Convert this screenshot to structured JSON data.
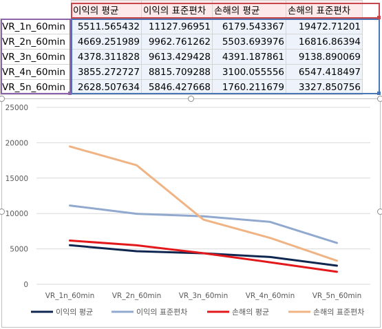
{
  "table": {
    "headers": [
      "이익의 평균",
      "이익의 표준편차",
      "손해의 평균",
      "손해의 표준편차"
    ],
    "rows": [
      {
        "label": "VR_1n_60min",
        "cells": [
          "5511.565432",
          "11127.96951",
          "6179.543367",
          "19472.71201"
        ]
      },
      {
        "label": "VR_2n_60min",
        "cells": [
          "4669.251989",
          "9962.761262",
          "5503.693976",
          "16816.86394"
        ]
      },
      {
        "label": "VR_3n_60min",
        "cells": [
          "4378.311828",
          "9613.429428",
          "4391.187861",
          "9138.890069"
        ]
      },
      {
        "label": "VR_4n_60min",
        "cells": [
          "3855.272727",
          "8815.709288",
          "3100.055556",
          "6547.418497"
        ]
      },
      {
        "label": "VR_5n_60min",
        "cells": [
          "2628.507634",
          "5846.427668",
          "1760.211679",
          "3327.850756"
        ]
      }
    ]
  },
  "chart_data": {
    "type": "line",
    "title": "",
    "xlabel": "",
    "ylabel": "",
    "ylim": [
      0,
      25000
    ],
    "y_ticks": [
      "0",
      "5000",
      "10000",
      "15000",
      "20000",
      "25000"
    ],
    "grid": true,
    "legend_position": "bottom",
    "categories": [
      "VR_1n_60min",
      "VR_2n_60min",
      "VR_3n_60min",
      "VR_4n_60min",
      "VR_5n_60min"
    ],
    "series": [
      {
        "name": "이익의 평균",
        "color": "#0f2750",
        "values": [
          5511.565432,
          4669.251989,
          4378.311828,
          3855.272727,
          2628.507634
        ]
      },
      {
        "name": "이익의 표준편차",
        "color": "#91a9cf",
        "values": [
          11127.96951,
          9962.761262,
          9613.429428,
          8815.709288,
          5846.427668
        ]
      },
      {
        "name": "손해의 평균",
        "color": "#e3181b",
        "values": [
          6179.543367,
          5503.693976,
          4391.187861,
          3100.055556,
          1760.211679
        ]
      },
      {
        "name": "손해의 표준편차",
        "color": "#f0b384",
        "values": [
          19472.71201,
          16816.86394,
          9138.890069,
          6547.418497,
          3327.850756
        ]
      }
    ]
  }
}
